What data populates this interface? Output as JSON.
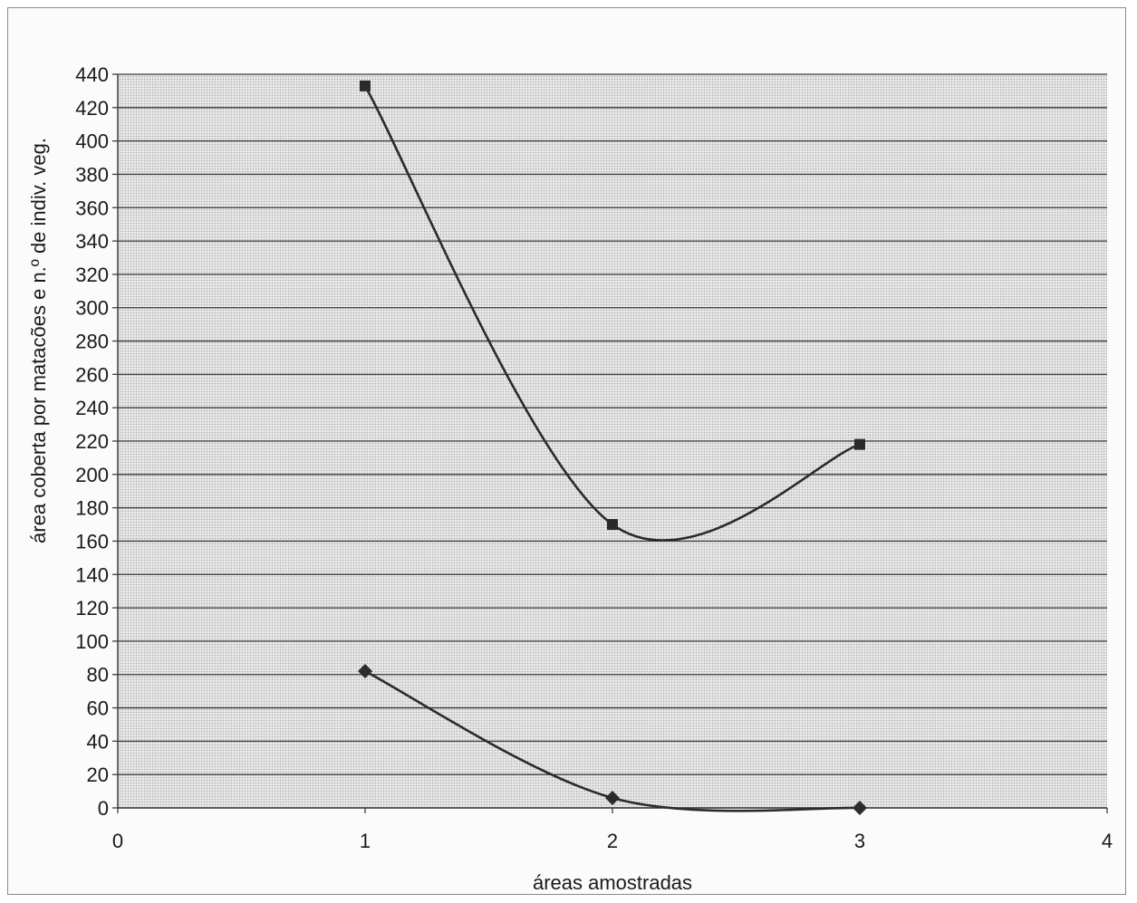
{
  "chart_data": {
    "type": "scatter",
    "title": "",
    "xlabel": "áreas amostradas",
    "ylabel": "área coberta por matacões e n.º de indiv. veg.",
    "xlim": [
      0,
      4
    ],
    "ylim": [
      0,
      440
    ],
    "x_ticks": [
      0,
      1,
      2,
      3,
      4
    ],
    "y_ticks": [
      0,
      20,
      40,
      60,
      80,
      100,
      120,
      140,
      160,
      180,
      200,
      220,
      240,
      260,
      280,
      300,
      320,
      340,
      360,
      380,
      400,
      420,
      440
    ],
    "grid": true,
    "legend": "none",
    "series": [
      {
        "marker": "square",
        "smooth": true,
        "x": [
          1,
          2,
          3
        ],
        "y": [
          433,
          170,
          218
        ]
      },
      {
        "marker": "diamond",
        "smooth": true,
        "x": [
          1,
          2,
          3
        ],
        "y": [
          82,
          6,
          0
        ]
      }
    ],
    "colors": {
      "plot_background": "#d6d6d6",
      "grid": "#3c3c3c",
      "line": "#2b2b2b",
      "marker": "#2b2b2b"
    }
  }
}
